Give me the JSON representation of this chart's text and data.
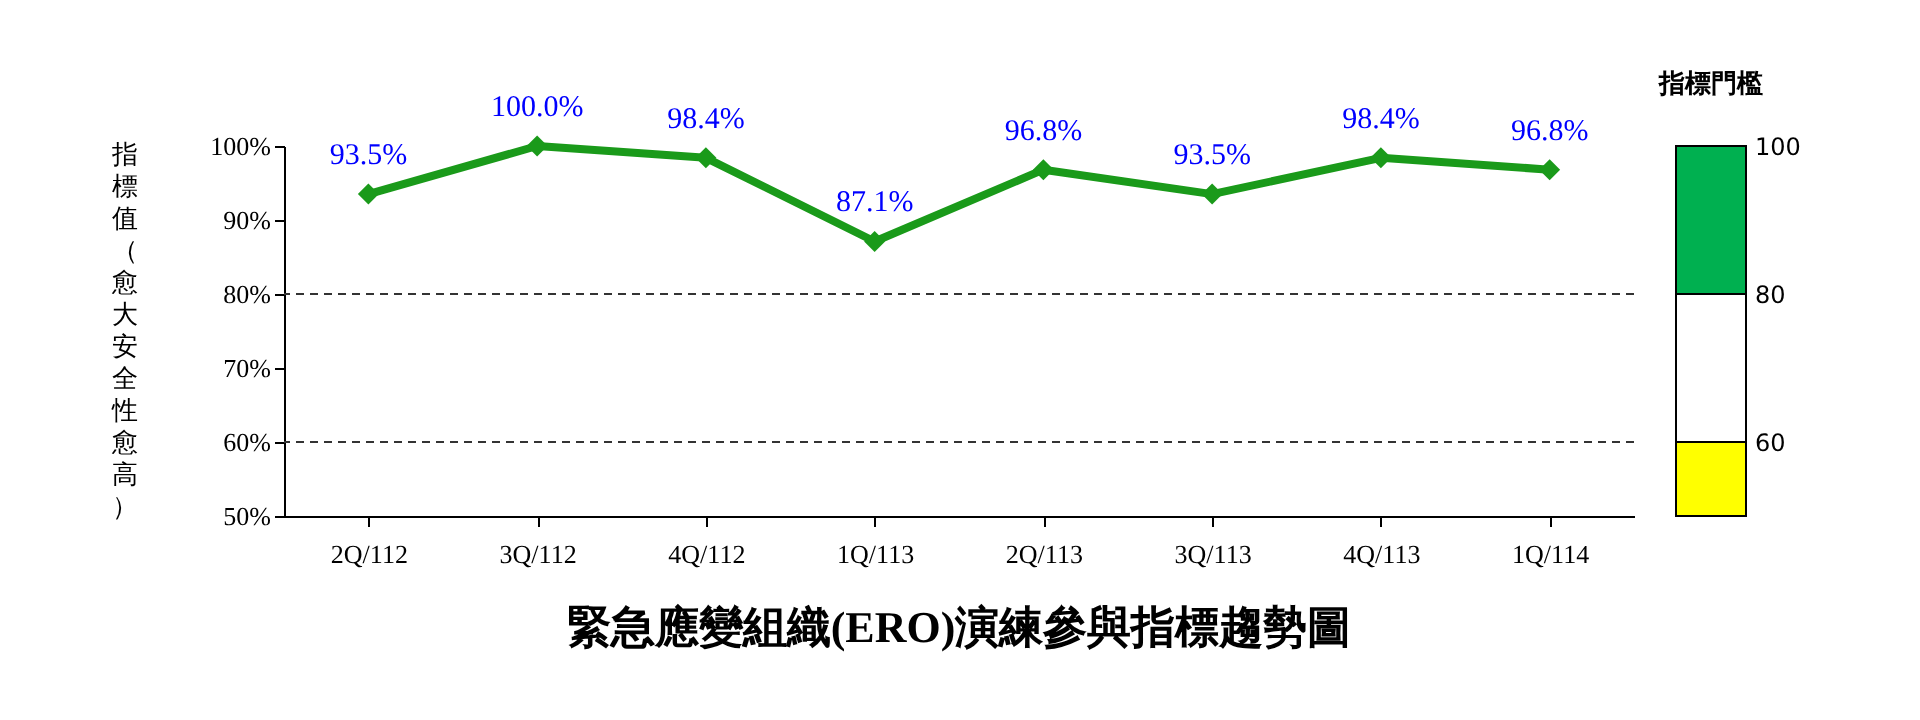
{
  "chart_data": [
    {
      "type": "line",
      "title": "緊急應變組織(ERO)演練參與指標趨勢圖",
      "ylabel": "指標值（愈大安全性愈高）",
      "categories": [
        "2Q/112",
        "3Q/112",
        "4Q/112",
        "1Q/113",
        "2Q/113",
        "3Q/113",
        "4Q/113",
        "1Q/114"
      ],
      "series": [
        {
          "color": "#1a9a1a",
          "values": [
            93.5,
            100.0,
            98.4,
            87.1,
            96.8,
            93.5,
            98.4,
            96.8
          ],
          "value_labels": [
            "93.5%",
            "100.0%",
            "98.4%",
            "87.1%",
            "96.8%",
            "93.5%",
            "98.4%",
            "96.8%"
          ]
        }
      ],
      "ylim": [
        50,
        100
      ],
      "yticks": [
        {
          "value": 50,
          "label": "50%"
        },
        {
          "value": 60,
          "label": "60%"
        },
        {
          "value": 70,
          "label": "70%"
        },
        {
          "value": 80,
          "label": "80%"
        },
        {
          "value": 90,
          "label": "90%"
        },
        {
          "value": 100,
          "label": "100%"
        }
      ],
      "ref_lines": [
        {
          "axis": "y",
          "value": 80,
          "line_style": "dashed"
        },
        {
          "axis": "y",
          "value": 60,
          "line_style": "dashed"
        }
      ],
      "marker": "diamond",
      "line_style": "solid"
    },
    {
      "type": "bar",
      "title": "指標門檻",
      "categories": [
        null
      ],
      "series": [
        {
          "color": "#ffff00",
          "values": [
            10
          ],
          "base": [
            50
          ]
        },
        {
          "color": "#ffffff",
          "values": [
            20
          ],
          "base": [
            60
          ]
        },
        {
          "color": "#00b050",
          "values": [
            20
          ],
          "base": [
            80
          ]
        }
      ],
      "ylim": [
        50,
        100
      ],
      "yticks": [
        60,
        80,
        100
      ]
    }
  ]
}
